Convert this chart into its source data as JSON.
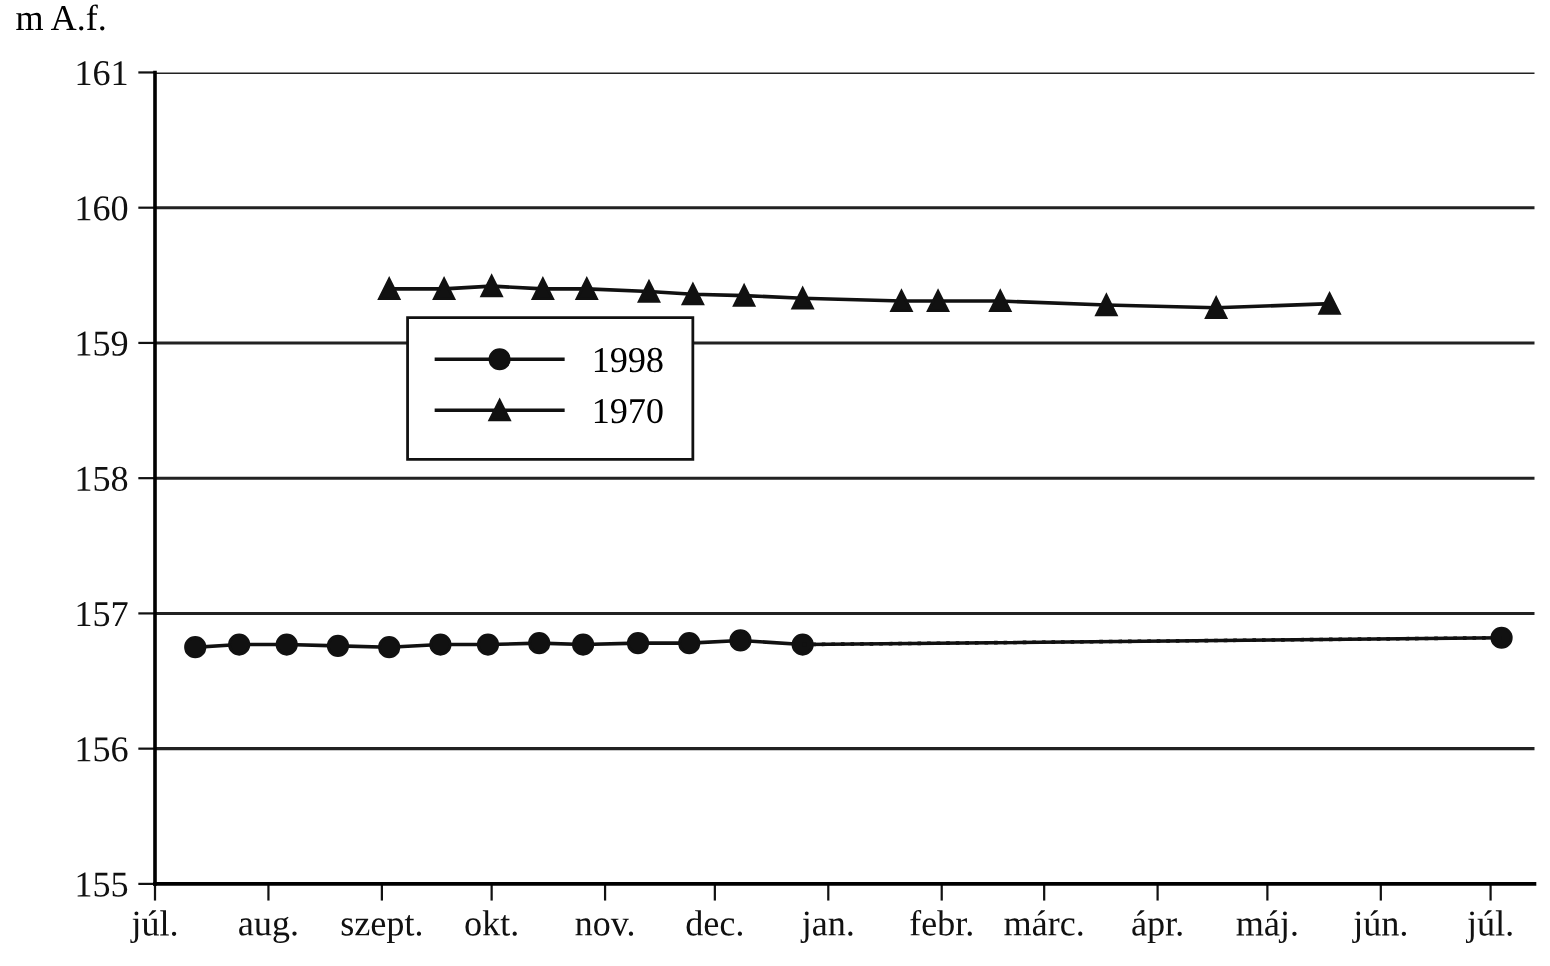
{
  "chart_data": {
    "type": "line",
    "ylabel": "m A.f.",
    "xlim": [
      "1998-07-01",
      "1999-07-13"
    ],
    "ylim": [
      155,
      161
    ],
    "yticks": [
      155,
      156,
      157,
      158,
      159,
      160,
      161
    ],
    "xticks": [
      {
        "value": "1998-07-01",
        "label": "júl."
      },
      {
        "value": "1998-08-01",
        "label": "aug."
      },
      {
        "value": "1998-09-01",
        "label": "szept."
      },
      {
        "value": "1998-10-01",
        "label": "okt."
      },
      {
        "value": "1998-11-01",
        "label": "nov."
      },
      {
        "value": "1998-12-01",
        "label": "dec."
      },
      {
        "value": "1999-01-01",
        "label": "jan."
      },
      {
        "value": "1999-02-01",
        "label": "febr."
      },
      {
        "value": "1999-03-01",
        "label": "márc."
      },
      {
        "value": "1999-04-01",
        "label": "ápr."
      },
      {
        "value": "1999-05-01",
        "label": "máj."
      },
      {
        "value": "1999-06-01",
        "label": "jún."
      },
      {
        "value": "1999-07-01",
        "label": "júl."
      }
    ],
    "grid": "y",
    "legend": "center",
    "series": [
      {
        "name": "1998",
        "color": "#111111",
        "marker": "circle",
        "line_style": "solid",
        "x": [
          "1998-07-12",
          "1998-07-24",
          "1998-08-06",
          "1998-08-20",
          "1998-09-03",
          "1998-09-17",
          "1998-09-30",
          "1998-10-14",
          "1998-10-26",
          "1998-11-10",
          "1998-11-24",
          "1998-12-08",
          "1998-12-25",
          "1999-07-04"
        ],
        "values": [
          156.75,
          156.77,
          156.77,
          156.76,
          156.75,
          156.77,
          156.77,
          156.78,
          156.77,
          156.78,
          156.78,
          156.8,
          156.77,
          156.82
        ]
      },
      {
        "color": "#111111",
        "marker": "none",
        "line_style": "dotted",
        "x": [
          "1998-12-25",
          "1999-07-04"
        ],
        "values": [
          156.77,
          156.82
        ]
      },
      {
        "name": "1970",
        "color": "#111111",
        "marker": "triangle",
        "line_style": "solid",
        "x": [
          "1998-09-03",
          "1998-09-18",
          "1998-10-01",
          "1998-10-15",
          "1998-10-27",
          "1998-11-13",
          "1998-11-25",
          "1998-12-09",
          "1998-12-25",
          "1999-01-21",
          "1999-01-31",
          "1999-02-17",
          "1999-03-18",
          "1999-04-17",
          "1999-05-18"
        ],
        "values": [
          159.4,
          159.4,
          159.42,
          159.4,
          159.4,
          159.38,
          159.36,
          159.35,
          159.33,
          159.31,
          159.31,
          159.31,
          159.28,
          159.26,
          159.29
        ]
      }
    ]
  }
}
